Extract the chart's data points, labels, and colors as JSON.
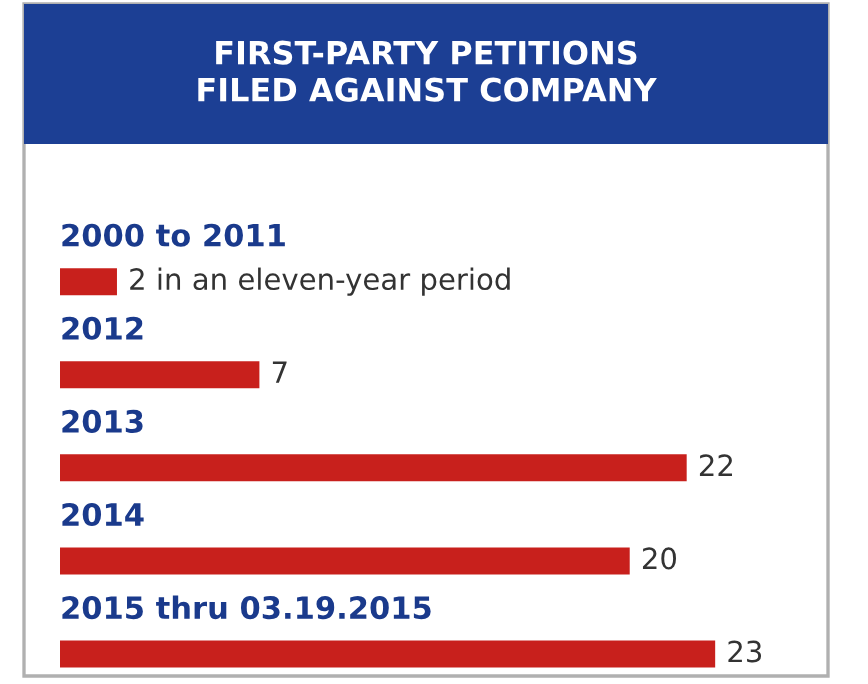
{
  "chart_data": {
    "type": "bar",
    "orientation": "horizontal",
    "title": "FIRST-PARTY PETITIONS\nFILED AGAINST COMPANY",
    "categories": [
      "2000 to 2011",
      "2012",
      "2013",
      "2014",
      "2015 thru 03.19.2015"
    ],
    "values": [
      2,
      7,
      22,
      20,
      23
    ],
    "value_labels": [
      "2 in an eleven-year period",
      "7",
      "22",
      "20",
      "23"
    ],
    "color": "#c8201c"
  }
}
